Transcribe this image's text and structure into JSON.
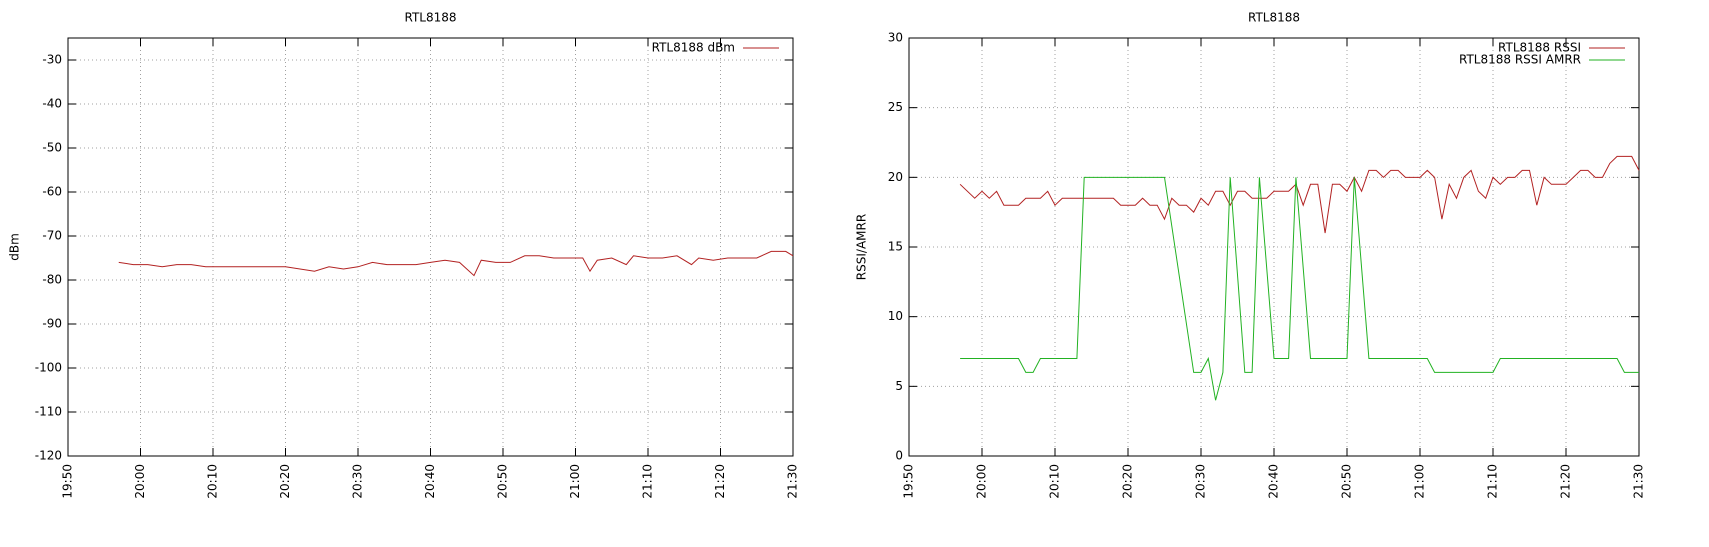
{
  "chart_data": [
    {
      "type": "line",
      "title": "RTL8188",
      "ylabel": "dBm",
      "xlim": [
        "19:50",
        "21:30"
      ],
      "xticks": [
        "19:50",
        "20:00",
        "20:10",
        "20:20",
        "20:30",
        "20:40",
        "20:50",
        "21:00",
        "21:10",
        "21:20",
        "21:30"
      ],
      "ylim": [
        -120,
        -25
      ],
      "yticks": [
        -120,
        -110,
        -100,
        -90,
        -80,
        -70,
        -60,
        -50,
        -40,
        -30
      ],
      "grid": true,
      "legend": "top-right",
      "series": [
        {
          "name": "RTL8188 dBm",
          "color": "#b22222",
          "x": [
            "19:57",
            "19:59",
            "20:01",
            "20:03",
            "20:05",
            "20:07",
            "20:09",
            "20:11",
            "20:20",
            "20:24",
            "20:26",
            "20:28",
            "20:30",
            "20:32",
            "20:34",
            "20:36",
            "20:38",
            "20:40",
            "20:42",
            "20:44",
            "20:46",
            "20:47",
            "20:49",
            "20:51",
            "20:53",
            "20:55",
            "20:57",
            "20:59",
            "21:01",
            "21:02",
            "21:03",
            "21:05",
            "21:07",
            "21:08",
            "21:10",
            "21:12",
            "21:14",
            "21:16",
            "21:17",
            "21:19",
            "21:21",
            "21:23",
            "21:25",
            "21:27",
            "21:29",
            "21:30"
          ],
          "values": [
            -76,
            -76.5,
            -76.5,
            -77,
            -76.5,
            -76.5,
            -77,
            -77,
            -77,
            -78,
            -77,
            -77.5,
            -77,
            -76,
            -76.5,
            -76.5,
            -76.5,
            -76,
            -75.5,
            -76,
            -79,
            -75.5,
            -76,
            -76,
            -74.5,
            -74.5,
            -75,
            -75,
            -75,
            -78,
            -75.5,
            -75,
            -76.5,
            -74.5,
            -75,
            -75,
            -74.5,
            -76.5,
            -75,
            -75.5,
            -75,
            -75,
            -75,
            -73.5,
            -73.5,
            -74.5
          ]
        }
      ]
    },
    {
      "type": "line",
      "title": "RTL8188",
      "ylabel": "RSSI/AMRR",
      "xlim": [
        "19:50",
        "21:30"
      ],
      "xticks": [
        "19:50",
        "20:00",
        "20:10",
        "20:20",
        "20:30",
        "20:40",
        "20:50",
        "21:00",
        "21:10",
        "21:20",
        "21:30"
      ],
      "ylim": [
        0,
        30
      ],
      "yticks": [
        0,
        5,
        10,
        15,
        20,
        25,
        30
      ],
      "grid": true,
      "legend": "top-right",
      "series": [
        {
          "name": "RTL8188 RSSI",
          "color": "#b22222",
          "x": [
            "19:57",
            "19:59",
            "20:00",
            "20:01",
            "20:02",
            "20:03",
            "20:05",
            "20:06",
            "20:08",
            "20:09",
            "20:10",
            "20:11",
            "20:18",
            "20:19",
            "20:21",
            "20:22",
            "20:23",
            "20:24",
            "20:25",
            "20:26",
            "20:27",
            "20:28",
            "20:29",
            "20:30",
            "20:31",
            "20:32",
            "20:33",
            "20:34",
            "20:35",
            "20:36",
            "20:37",
            "20:39",
            "20:40",
            "20:42",
            "20:43",
            "20:44",
            "20:45",
            "20:46",
            "20:47",
            "20:48",
            "20:49",
            "20:50",
            "20:51",
            "20:52",
            "20:53",
            "20:54",
            "20:55",
            "20:56",
            "20:57",
            "20:58",
            "21:00",
            "21:01",
            "21:02",
            "21:03",
            "21:04",
            "21:05",
            "21:06",
            "21:07",
            "21:08",
            "21:09",
            "21:10",
            "21:11",
            "21:12",
            "21:13",
            "21:14",
            "21:15",
            "21:16",
            "21:17",
            "21:18",
            "21:20",
            "21:21",
            "21:22",
            "21:23",
            "21:24",
            "21:25",
            "21:26",
            "21:27",
            "21:29",
            "21:30"
          ],
          "values": [
            19.5,
            18.5,
            19,
            18.5,
            19,
            18,
            18,
            18.5,
            18.5,
            19,
            18,
            18.5,
            18.5,
            18,
            18,
            18.5,
            18,
            18,
            17,
            18.5,
            18,
            18,
            17.5,
            18.5,
            18,
            19,
            19,
            18,
            19,
            19,
            18.5,
            18.5,
            19,
            19,
            19.5,
            18,
            19.5,
            19.5,
            16,
            19.5,
            19.5,
            19,
            20,
            19,
            20.5,
            20.5,
            20,
            20.5,
            20.5,
            20,
            20,
            20.5,
            20,
            17,
            19.5,
            18.5,
            20,
            20.5,
            19,
            18.5,
            20,
            19.5,
            20,
            20,
            20.5,
            20.5,
            18,
            20,
            19.5,
            19.5,
            20,
            20.5,
            20.5,
            20,
            20,
            21,
            21.5,
            21.5,
            20.5
          ]
        },
        {
          "name": "RTL8188 RSSI AMRR",
          "color": "#22b222",
          "x": [
            "19:57",
            "20:05",
            "20:06",
            "20:07",
            "20:08",
            "20:13",
            "20:14",
            "20:25",
            "20:29",
            "20:30",
            "20:31",
            "20:32",
            "20:33",
            "20:34",
            "20:36",
            "20:37",
            "20:38",
            "20:40",
            "20:42",
            "20:43",
            "20:45",
            "20:50",
            "20:51",
            "20:53",
            "21:01",
            "21:02",
            "21:10",
            "21:11",
            "21:27",
            "21:28",
            "21:30"
          ],
          "values": [
            7,
            7,
            6,
            6,
            7,
            7,
            20,
            20,
            6,
            6,
            7,
            4,
            6,
            20,
            6,
            6,
            20,
            7,
            7,
            20,
            7,
            7,
            20,
            7,
            7,
            6,
            6,
            7,
            7,
            6,
            6
          ]
        }
      ]
    }
  ]
}
